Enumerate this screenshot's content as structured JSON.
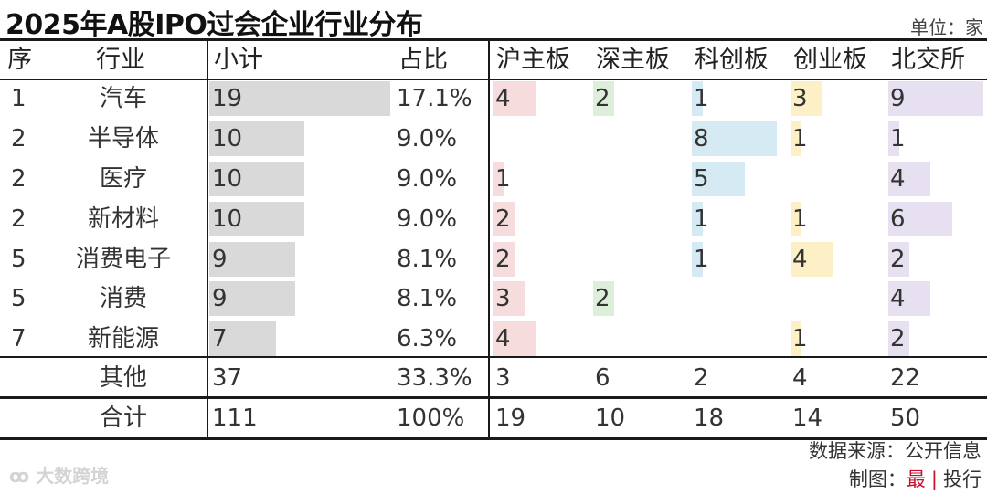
{
  "title": "2025年A股IPO过会企业行业分布",
  "unit": "单位：家",
  "headers": {
    "rank": "序",
    "industry": "行业",
    "subtotal": "小计",
    "share": "占比",
    "boards": [
      "沪主板",
      "深主板",
      "科创板",
      "创业板",
      "北交所"
    ]
  },
  "chart_data": {
    "type": "table",
    "rows": [
      {
        "rank": "1",
        "industry": "汽车",
        "subtotal": 19,
        "share": "17.1%",
        "boards": [
          4,
          2,
          1,
          3,
          9
        ]
      },
      {
        "rank": "2",
        "industry": "半导体",
        "subtotal": 10,
        "share": "9.0%",
        "boards": [
          null,
          null,
          8,
          1,
          1
        ]
      },
      {
        "rank": "2",
        "industry": "医疗",
        "subtotal": 10,
        "share": "9.0%",
        "boards": [
          1,
          null,
          5,
          null,
          4
        ]
      },
      {
        "rank": "2",
        "industry": "新材料",
        "subtotal": 10,
        "share": "9.0%",
        "boards": [
          2,
          null,
          1,
          1,
          6
        ]
      },
      {
        "rank": "5",
        "industry": "消费电子",
        "subtotal": 9,
        "share": "8.1%",
        "boards": [
          2,
          null,
          1,
          4,
          2
        ]
      },
      {
        "rank": "5",
        "industry": "消费",
        "subtotal": 9,
        "share": "8.1%",
        "boards": [
          3,
          2,
          null,
          null,
          4
        ]
      },
      {
        "rank": "7",
        "industry": "新能源",
        "subtotal": 7,
        "share": "6.3%",
        "boards": [
          4,
          null,
          null,
          1,
          2
        ]
      }
    ],
    "other": {
      "industry": "其他",
      "subtotal": 37,
      "share": "33.3%",
      "boards": [
        3,
        6,
        2,
        4,
        22
      ]
    },
    "total": {
      "industry": "合计",
      "subtotal": 111,
      "share": "100%",
      "boards": [
        19,
        10,
        18,
        14,
        50
      ]
    }
  },
  "colors": {
    "subtotal_bar": "#d9d9d9",
    "boards": [
      "#f6dcdc",
      "#dcefd8",
      "#d5eaf2",
      "#fdf0c6",
      "#e6e0f0"
    ]
  },
  "source": "数据来源：公开信息",
  "maker": {
    "prefix": "制图：",
    "a": "最",
    "sep": "|",
    "b": "投行"
  },
  "watermark": "大数跨境"
}
